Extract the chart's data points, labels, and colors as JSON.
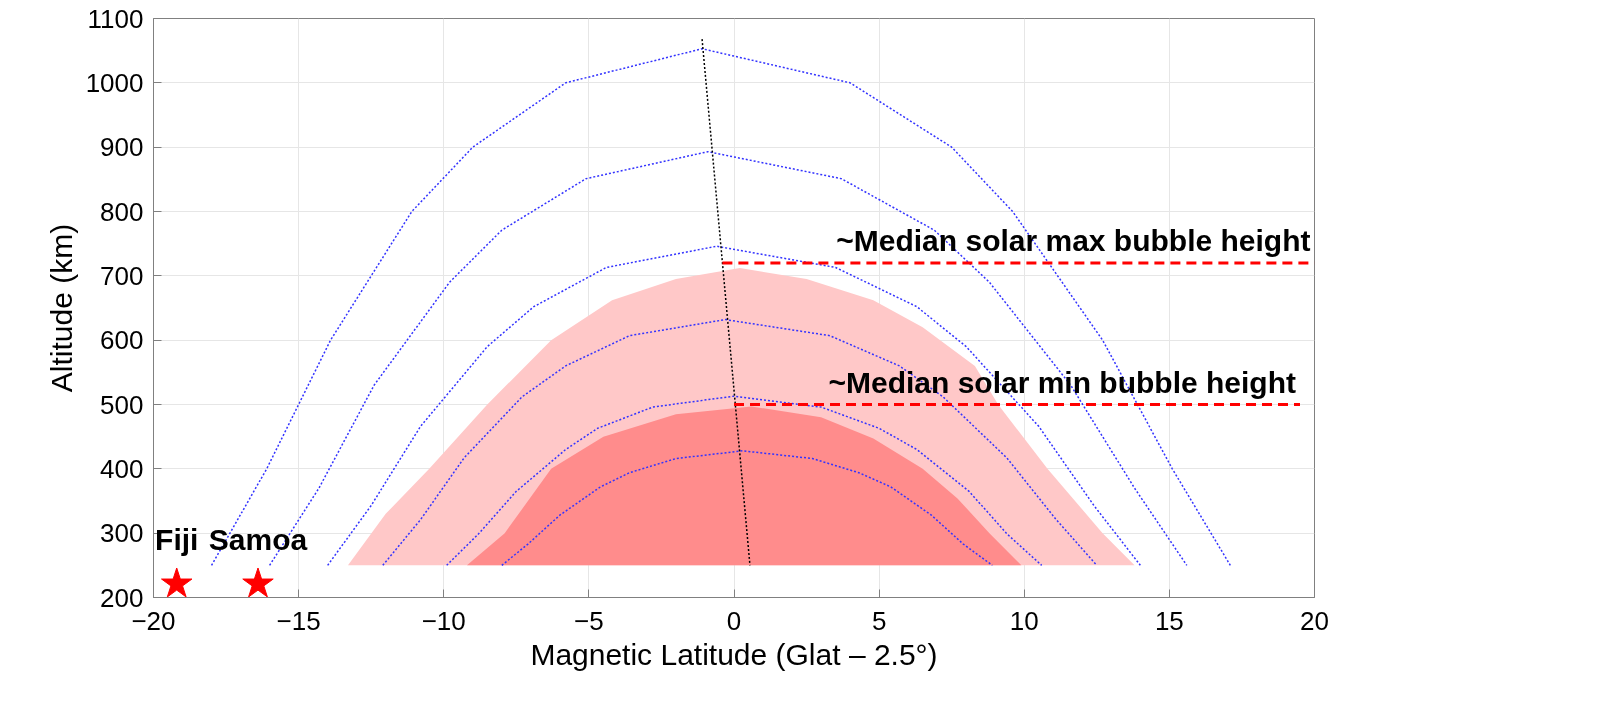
{
  "chart_data": {
    "type": "line",
    "xlabel": "Magnetic Latitude (Glat – 2.5°)",
    "ylabel": "Altitude (km)",
    "xlim": [
      -20,
      20
    ],
    "ylim": [
      200,
      1100
    ],
    "xticks": [
      -20,
      -15,
      -10,
      -5,
      0,
      5,
      10,
      15,
      20
    ],
    "yticks": [
      200,
      300,
      400,
      500,
      600,
      700,
      800,
      900,
      1000,
      1100
    ],
    "grid": true,
    "series": [
      {
        "type": "area",
        "color": "#ffc8c8",
        "x": [
          -13.3,
          -12,
          -10.5,
          -8.5,
          -6.3,
          -4.2,
          -2,
          0.2,
          2.5,
          4.8,
          6.5,
          8.3,
          9.1,
          10.8,
          12.7,
          13.8
        ],
        "values": [
          250,
          330,
          400,
          500,
          600,
          662,
          695,
          712,
          695,
          662,
          620,
          560,
          500,
          400,
          300,
          250
        ]
      },
      {
        "type": "area",
        "color": "#ff8c8c",
        "x": [
          -9.2,
          -7.9,
          -6.3,
          -4.5,
          -2,
          0.6,
          3,
          4.8,
          6.5,
          7.7,
          8.8,
          9.9
        ],
        "values": [
          250,
          300,
          400,
          450,
          485,
          497,
          480,
          447,
          400,
          354,
          300,
          250
        ]
      },
      {
        "color": "#3333ff",
        "line_style": "dotted",
        "x": [
          -18.0,
          -16.1,
          -13.9,
          -11.1,
          -9.0,
          -5.8,
          -1.1,
          4.0,
          7.5,
          9.6,
          12.7,
          15.1,
          17.1
        ],
        "values": [
          250,
          400,
          600,
          800,
          900,
          1000,
          1053,
          1000,
          900,
          800,
          600,
          400,
          250
        ]
      },
      {
        "color": "#3333ff",
        "line_style": "dotted",
        "x": [
          -16.0,
          -14.3,
          -12.4,
          -9.8,
          -8.0,
          -5.1,
          -0.9,
          3.7,
          6.9,
          8.8,
          11.6,
          13.8,
          15.6
        ],
        "values": [
          250,
          370,
          530,
          690,
          771,
          851,
          893,
          851,
          771,
          690,
          530,
          370,
          250
        ]
      },
      {
        "color": "#3333ff",
        "line_style": "dotted",
        "x": [
          -14.0,
          -12.5,
          -10.8,
          -8.5,
          -6.9,
          -4.4,
          -0.6,
          3.5,
          6.3,
          8.0,
          10.5,
          12.4,
          14.0
        ],
        "values": [
          250,
          343,
          466,
          590,
          652,
          713,
          746,
          713,
          652,
          590,
          466,
          343,
          250
        ]
      },
      {
        "color": "#3333ff",
        "line_style": "dotted",
        "x": [
          -12.1,
          -10.8,
          -9.3,
          -7.3,
          -5.8,
          -3.6,
          -0.3,
          3.3,
          5.7,
          7.2,
          9.4,
          11.1,
          12.5
        ],
        "values": [
          250,
          321,
          417,
          512,
          560,
          607,
          632,
          607,
          560,
          512,
          417,
          321,
          250
        ]
      },
      {
        "color": "#3333ff",
        "line_style": "dotted",
        "x": [
          -9.9,
          -8.8,
          -7.5,
          -5.8,
          -4.7,
          -2.8,
          0,
          3.0,
          5.0,
          6.3,
          8.1,
          9.4,
          10.6
        ],
        "values": [
          250,
          299,
          365,
          430,
          463,
          496,
          513,
          496,
          463,
          430,
          365,
          299,
          250
        ]
      },
      {
        "color": "#3333ff",
        "line_style": "dotted",
        "x": [
          -8.0,
          -7.1,
          -6.0,
          -4.6,
          -3.6,
          -2.0,
          0.3,
          2.7,
          4.3,
          5.4,
          6.8,
          7.9,
          8.9
        ],
        "values": [
          250,
          283,
          328,
          372,
          394,
          416,
          428,
          416,
          394,
          372,
          328,
          283,
          250
        ]
      },
      {
        "color": "#000000",
        "line_style": "dotted",
        "x": [
          -1.1,
          0.55
        ],
        "values": [
          1068,
          250
        ]
      },
      {
        "color": "#ff0000",
        "line_style": "dashed",
        "x": [
          -0.4,
          20
        ],
        "values": [
          720,
          720
        ]
      },
      {
        "color": "#ff0000",
        "line_style": "dashed",
        "x": [
          0,
          19.5
        ],
        "values": [
          500,
          500
        ]
      },
      {
        "type": "scatter",
        "name": "Fiji",
        "color": "#ff0000",
        "marker": "star",
        "x": [
          -19.2
        ],
        "values": [
          221
        ]
      },
      {
        "type": "scatter",
        "name": "Samoa",
        "color": "#ff0000",
        "marker": "star",
        "x": [
          -16.4
        ],
        "values": [
          221
        ]
      }
    ],
    "annotations": [
      {
        "text": "~Median solar max bubble height",
        "x": 20,
        "y": 720
      },
      {
        "text": "~Median solar min bubble height",
        "x": 19.5,
        "y": 500
      }
    ]
  }
}
